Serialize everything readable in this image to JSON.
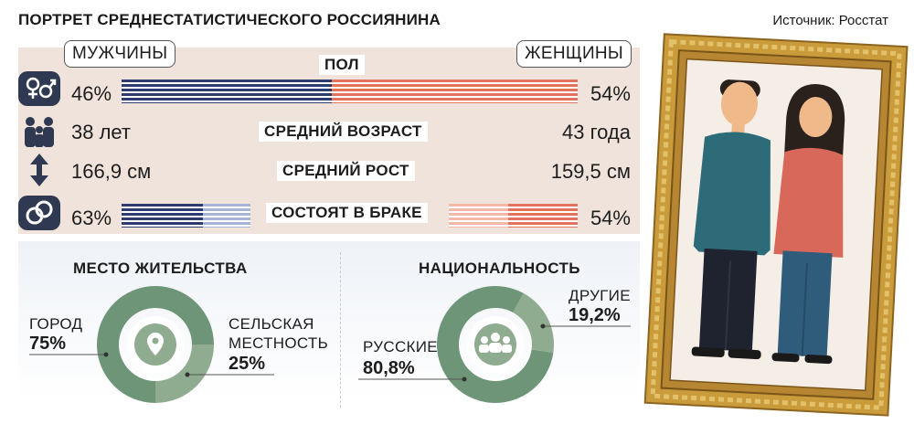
{
  "header": {
    "title": "ПОРТРЕТ СРЕДНЕСТАТИСТИЧЕСКОГО РОССИЯНИНА",
    "source": "Источник: Росстат"
  },
  "legend": {
    "men": "МУЖЧИНЫ",
    "women": "ЖЕНЩИНЫ"
  },
  "rows": {
    "gender": {
      "label": "ПОЛ",
      "men": "46%",
      "women": "54%"
    },
    "age": {
      "label": "СРЕДНИЙ ВОЗРАСТ",
      "men": "38 лет",
      "women": "43 года"
    },
    "height": {
      "label": "СРЕДНИЙ РОСТ",
      "men": "166,9 см",
      "women": "159,5 см"
    },
    "married": {
      "label": "СОСТОЯТ В БРАКЕ",
      "men": "63%",
      "women": "54%"
    }
  },
  "residence": {
    "title": "МЕСТО ЖИТЕЛЬСТВА",
    "city_label": "ГОРОД",
    "city_value": "75%",
    "rural_label_1": "СЕЛЬСКАЯ",
    "rural_label_2": "МЕСТНОСТЬ",
    "rural_value": "25%"
  },
  "nationality": {
    "title": "НАЦИОНАЛЬНОСТЬ",
    "russian_label": "РУССКИЕ",
    "russian_value": "80,8%",
    "other_label": "ДРУГИЕ",
    "other_value": "19,2%"
  },
  "icons": [
    "gender-icon",
    "family-icon",
    "height-arrow-icon",
    "rings-icon",
    "location-pin-icon",
    "people-group-icon"
  ],
  "colors": {
    "navy": "#2d3b6e",
    "coral": "#e2735d",
    "donut_main": "#6e9578",
    "donut_light": "#8fac90",
    "panel": "#efe3dc"
  },
  "chart_data": [
    {
      "type": "bar",
      "title": "ПОЛ",
      "categories": [
        "МУЖЧИНЫ",
        "ЖЕНЩИНЫ"
      ],
      "values": [
        46,
        54
      ],
      "unit": "%"
    },
    {
      "type": "table",
      "title": "СРЕДНИЙ ВОЗРАСТ",
      "categories": [
        "МУЖЧИНЫ",
        "ЖЕНЩИНЫ"
      ],
      "values": [
        38,
        43
      ]
    },
    {
      "type": "table",
      "title": "СРЕДНИЙ РОСТ",
      "categories": [
        "МУЖЧИНЫ",
        "ЖЕНЩИНЫ"
      ],
      "values": [
        166.9,
        159.5
      ],
      "unit": "см"
    },
    {
      "type": "bar",
      "title": "СОСТОЯТ В БРАКЕ",
      "categories": [
        "МУЖЧИНЫ",
        "ЖЕНЩИНЫ"
      ],
      "values": [
        63,
        54
      ],
      "unit": "%"
    },
    {
      "type": "pie",
      "title": "МЕСТО ЖИТЕЛЬСТВА",
      "categories": [
        "ГОРОД",
        "СЕЛЬСКАЯ МЕСТНОСТЬ"
      ],
      "values": [
        75,
        25
      ],
      "unit": "%"
    },
    {
      "type": "pie",
      "title": "НАЦИОНАЛЬНОСТЬ",
      "categories": [
        "РУССКИЕ",
        "ДРУГИЕ"
      ],
      "values": [
        80.8,
        19.2
      ],
      "unit": "%"
    }
  ]
}
